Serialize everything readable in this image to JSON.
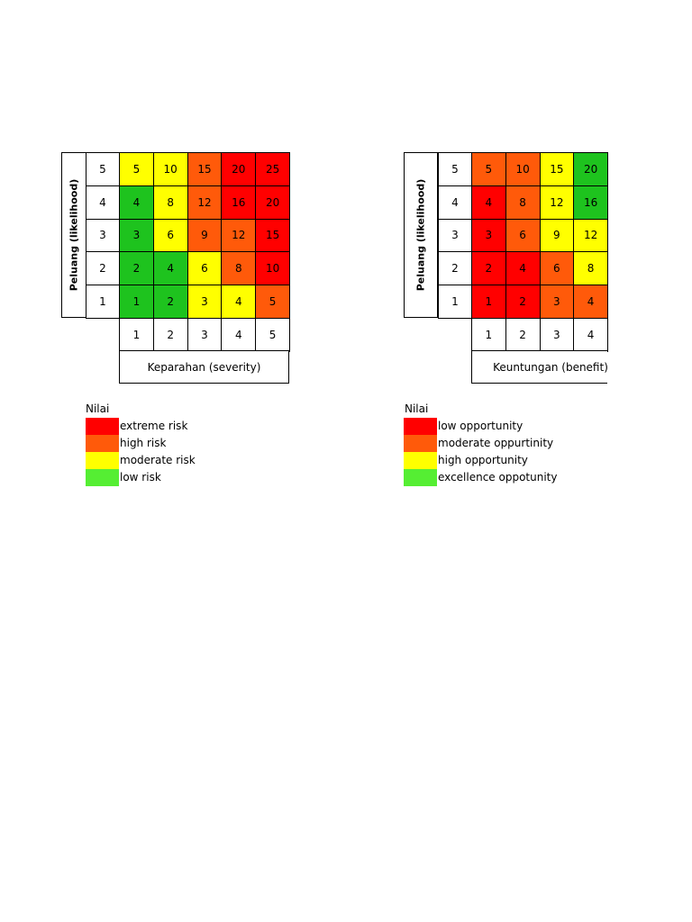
{
  "colors": {
    "red": "#ff0000",
    "orange": "#ff5a0a",
    "yellow": "#ffff00",
    "green": "#1ec31e",
    "legend_green": "#55ee33"
  },
  "risk_matrix": {
    "y_label": "Peluang (likelihood)",
    "x_label": "Keparahan (severity)",
    "row_headers": [
      "5",
      "4",
      "3",
      "2",
      "1"
    ],
    "col_headers": [
      "1",
      "2",
      "3",
      "4",
      "5"
    ],
    "rows": [
      [
        {
          "v": "5",
          "c": "yellow"
        },
        {
          "v": "10",
          "c": "yellow"
        },
        {
          "v": "15",
          "c": "orange"
        },
        {
          "v": "20",
          "c": "red"
        },
        {
          "v": "25",
          "c": "red"
        }
      ],
      [
        {
          "v": "4",
          "c": "green"
        },
        {
          "v": "8",
          "c": "yellow"
        },
        {
          "v": "12",
          "c": "orange"
        },
        {
          "v": "16",
          "c": "red"
        },
        {
          "v": "20",
          "c": "red"
        }
      ],
      [
        {
          "v": "3",
          "c": "green"
        },
        {
          "v": "6",
          "c": "yellow"
        },
        {
          "v": "9",
          "c": "orange"
        },
        {
          "v": "12",
          "c": "orange"
        },
        {
          "v": "15",
          "c": "red"
        }
      ],
      [
        {
          "v": "2",
          "c": "green"
        },
        {
          "v": "4",
          "c": "green"
        },
        {
          "v": "6",
          "c": "yellow"
        },
        {
          "v": "8",
          "c": "orange"
        },
        {
          "v": "10",
          "c": "red"
        }
      ],
      [
        {
          "v": "1",
          "c": "green"
        },
        {
          "v": "2",
          "c": "green"
        },
        {
          "v": "3",
          "c": "yellow"
        },
        {
          "v": "4",
          "c": "yellow"
        },
        {
          "v": "5",
          "c": "orange"
        }
      ]
    ],
    "legend": {
      "title": "Nilai",
      "items": [
        {
          "label": "extreme risk",
          "c": "red"
        },
        {
          "label": "high risk",
          "c": "orange"
        },
        {
          "label": "moderate risk",
          "c": "yellow"
        },
        {
          "label": "low risk",
          "c": "legend_green"
        }
      ]
    }
  },
  "opportunity_matrix": {
    "y_label": "Peluang (likelihood)",
    "x_label": "Keuntungan (benefit)",
    "row_headers": [
      "5",
      "4",
      "3",
      "2",
      "1"
    ],
    "col_headers": [
      "1",
      "2",
      "3",
      "4"
    ],
    "rows": [
      [
        {
          "v": "5",
          "c": "orange"
        },
        {
          "v": "10",
          "c": "orange"
        },
        {
          "v": "15",
          "c": "yellow"
        },
        {
          "v": "20",
          "c": "green"
        }
      ],
      [
        {
          "v": "4",
          "c": "red"
        },
        {
          "v": "8",
          "c": "orange"
        },
        {
          "v": "12",
          "c": "yellow"
        },
        {
          "v": "16",
          "c": "green"
        }
      ],
      [
        {
          "v": "3",
          "c": "red"
        },
        {
          "v": "6",
          "c": "orange"
        },
        {
          "v": "9",
          "c": "yellow"
        },
        {
          "v": "12",
          "c": "yellow"
        }
      ],
      [
        {
          "v": "2",
          "c": "red"
        },
        {
          "v": "4",
          "c": "red"
        },
        {
          "v": "6",
          "c": "orange"
        },
        {
          "v": "8",
          "c": "yellow"
        }
      ],
      [
        {
          "v": "1",
          "c": "red"
        },
        {
          "v": "2",
          "c": "red"
        },
        {
          "v": "3",
          "c": "orange"
        },
        {
          "v": "4",
          "c": "orange"
        }
      ]
    ],
    "legend": {
      "title": "Nilai",
      "items": [
        {
          "label": "low opportunity",
          "c": "red"
        },
        {
          "label": "moderate oppurtinity",
          "c": "orange"
        },
        {
          "label": "high opportunity",
          "c": "yellow"
        },
        {
          "label": "excellence oppotunity",
          "c": "legend_green"
        }
      ]
    }
  }
}
